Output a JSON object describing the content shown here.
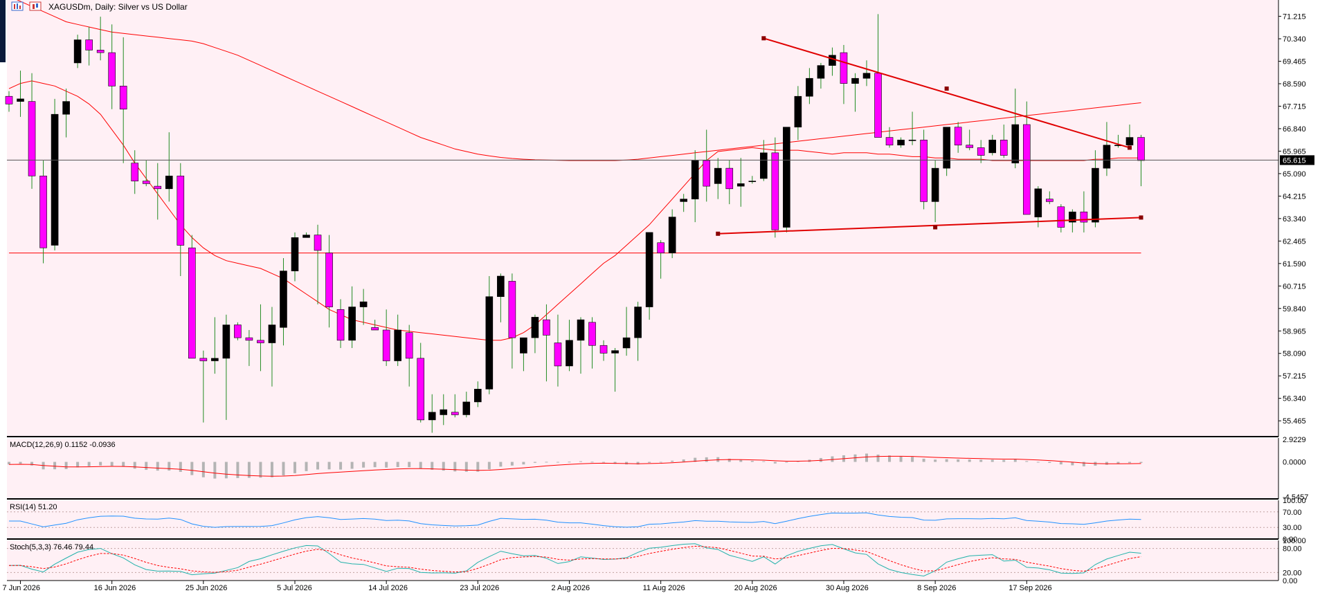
{
  "colors": {
    "background": "#FFF0F5",
    "bull_candle": "#000000",
    "bear_candle": "#FF00FF",
    "wick": "#228B22",
    "ma": "#FF0000",
    "trendline": "#E00000",
    "price_line": "#555555",
    "macd_hist": "#B4B4B4",
    "rsi": "#1E90FF",
    "stoch_main": "#20B2AA",
    "stoch_signal": "#FF0000",
    "level_line": "#C0A0A0"
  },
  "header": {
    "icon": "bar-chart-icon",
    "symbol": "XAGUSDm",
    "title": "XAGUSDm, Daily:  Silver vs US Dollar"
  },
  "price_readout": "65.615",
  "chart_data": {
    "type": "candlestick",
    "symbol": "XAGUSDm",
    "timeframe": "Daily",
    "description": "Silver vs US Dollar",
    "ylim": [
      54.85,
      71.85
    ],
    "y_ticks": [
      "71.215",
      "70.340",
      "69.465",
      "68.590",
      "67.715",
      "66.840",
      "65.965",
      "65.090",
      "64.215",
      "63.340",
      "62.465",
      "61.590",
      "60.715",
      "59.840",
      "58.965",
      "58.090",
      "57.215",
      "56.340",
      "55.465"
    ],
    "x_ticks": [
      {
        "label": "7 Jun 2026",
        "bar": 1
      },
      {
        "label": "16 Jun 2026",
        "bar": 9
      },
      {
        "label": "25 Jun 2026",
        "bar": 17
      },
      {
        "label": "5 Jul 2026",
        "bar": 25
      },
      {
        "label": "14 Jul 2026",
        "bar": 33
      },
      {
        "label": "23 Jul 2026",
        "bar": 41
      },
      {
        "label": "2 Aug 2026",
        "bar": 49
      },
      {
        "label": "11 Aug 2026",
        "bar": 57
      },
      {
        "label": "20 Aug 2026",
        "bar": 65
      },
      {
        "label": "30 Aug 2026",
        "bar": 73
      },
      {
        "label": "8 Sep 2026",
        "bar": 81
      },
      {
        "label": "17 Sep 2026",
        "bar": 89
      }
    ],
    "last_price": 65.615,
    "ohlc": [
      [
        68.1,
        68.3,
        67.5,
        67.8
      ],
      [
        67.9,
        69.1,
        67.3,
        68.0
      ],
      [
        67.9,
        69.0,
        64.5,
        65.0
      ],
      [
        65.0,
        65.6,
        61.6,
        62.2
      ],
      [
        62.3,
        68.0,
        62.1,
        67.4
      ],
      [
        67.4,
        68.4,
        66.5,
        67.9
      ],
      [
        69.4,
        70.5,
        69.2,
        70.3
      ],
      [
        70.3,
        70.8,
        69.3,
        69.9
      ],
      [
        69.9,
        71.2,
        69.5,
        69.8
      ],
      [
        69.8,
        70.9,
        67.6,
        68.5
      ],
      [
        68.5,
        70.4,
        65.5,
        67.6
      ],
      [
        65.5,
        66.0,
        64.3,
        64.8
      ],
      [
        64.8,
        65.6,
        64.6,
        64.7
      ],
      [
        64.6,
        65.5,
        63.3,
        64.5
      ],
      [
        64.5,
        66.7,
        64.0,
        65.0
      ],
      [
        65.0,
        65.5,
        61.1,
        62.3
      ],
      [
        62.2,
        62.7,
        58.0,
        57.9
      ],
      [
        57.9,
        58.2,
        55.4,
        57.8
      ],
      [
        57.8,
        59.5,
        57.3,
        57.9
      ],
      [
        57.9,
        59.6,
        55.5,
        59.2
      ],
      [
        59.2,
        59.3,
        58.6,
        58.7
      ],
      [
        58.7,
        59.0,
        57.6,
        58.6
      ],
      [
        58.6,
        60.0,
        57.4,
        58.5
      ],
      [
        58.5,
        59.9,
        56.8,
        59.2
      ],
      [
        59.1,
        61.8,
        58.4,
        61.3
      ],
      [
        61.3,
        62.8,
        60.9,
        62.6
      ],
      [
        62.6,
        62.8,
        62.6,
        62.7
      ],
      [
        62.7,
        63.1,
        60.0,
        62.1
      ],
      [
        62.0,
        62.7,
        59.1,
        59.9
      ],
      [
        59.8,
        60.2,
        58.3,
        58.6
      ],
      [
        58.6,
        60.7,
        58.3,
        59.9
      ],
      [
        59.9,
        60.6,
        59.2,
        60.1
      ],
      [
        59.1,
        59.4,
        59.0,
        59.0
      ],
      [
        59.0,
        59.8,
        57.6,
        57.8
      ],
      [
        57.8,
        59.6,
        57.6,
        59.0
      ],
      [
        58.9,
        59.2,
        56.8,
        57.9
      ],
      [
        57.9,
        58.5,
        55.4,
        55.5
      ],
      [
        55.5,
        56.5,
        55.0,
        55.8
      ],
      [
        55.7,
        56.5,
        55.3,
        55.9
      ],
      [
        55.8,
        56.5,
        55.6,
        55.7
      ],
      [
        55.7,
        56.6,
        55.6,
        56.2
      ],
      [
        56.2,
        57.0,
        56.0,
        56.7
      ],
      [
        56.7,
        61.1,
        56.5,
        60.3
      ],
      [
        60.3,
        61.2,
        59.3,
        61.1
      ],
      [
        60.9,
        61.2,
        57.5,
        58.7
      ],
      [
        58.1,
        58.7,
        57.4,
        58.7
      ],
      [
        58.7,
        59.6,
        58.1,
        59.5
      ],
      [
        59.4,
        60.0,
        57.0,
        58.8
      ],
      [
        58.5,
        59.6,
        56.8,
        57.6
      ],
      [
        57.6,
        59.4,
        57.4,
        58.6
      ],
      [
        58.6,
        59.5,
        57.3,
        59.4
      ],
      [
        59.3,
        59.5,
        57.5,
        58.4
      ],
      [
        58.4,
        58.6,
        57.8,
        58.1
      ],
      [
        58.1,
        58.3,
        56.6,
        58.2
      ],
      [
        58.3,
        59.9,
        58.0,
        58.7
      ],
      [
        58.7,
        60.1,
        57.8,
        59.9
      ],
      [
        59.9,
        62.8,
        59.4,
        62.8
      ],
      [
        62.4,
        62.5,
        61.0,
        62.0
      ],
      [
        62.0,
        63.7,
        61.8,
        63.4
      ],
      [
        64.0,
        64.3,
        63.6,
        64.1
      ],
      [
        64.1,
        66.0,
        63.2,
        65.6
      ],
      [
        65.6,
        66.8,
        64.0,
        64.6
      ],
      [
        64.7,
        65.7,
        64.1,
        65.3
      ],
      [
        65.3,
        65.6,
        63.9,
        64.5
      ],
      [
        64.6,
        65.7,
        63.8,
        64.7
      ],
      [
        64.8,
        65.0,
        64.7,
        64.8
      ],
      [
        64.9,
        66.4,
        64.8,
        65.9
      ],
      [
        65.9,
        66.5,
        62.6,
        62.9
      ],
      [
        63.0,
        66.9,
        62.8,
        66.9
      ],
      [
        66.9,
        68.5,
        66.4,
        68.1
      ],
      [
        68.1,
        69.2,
        67.8,
        68.8
      ],
      [
        68.8,
        69.4,
        68.4,
        69.3
      ],
      [
        69.3,
        70.0,
        68.9,
        69.7
      ],
      [
        69.8,
        70.1,
        67.8,
        68.6
      ],
      [
        68.6,
        69.0,
        67.5,
        68.8
      ],
      [
        68.8,
        69.5,
        68.5,
        69.0
      ],
      [
        69.0,
        71.3,
        66.6,
        66.5
      ],
      [
        66.5,
        66.9,
        66.1,
        66.2
      ],
      [
        66.2,
        66.5,
        66.1,
        66.4
      ],
      [
        66.4,
        67.5,
        66.2,
        66.4
      ],
      [
        66.4,
        66.8,
        63.7,
        64.0
      ],
      [
        64.0,
        65.6,
        63.2,
        65.3
      ],
      [
        65.3,
        66.9,
        65.0,
        66.9
      ],
      [
        66.9,
        67.1,
        65.9,
        66.2
      ],
      [
        66.2,
        66.8,
        66.0,
        66.1
      ],
      [
        66.1,
        66.4,
        65.5,
        65.8
      ],
      [
        65.9,
        66.6,
        65.8,
        66.4
      ],
      [
        66.4,
        67.0,
        65.7,
        65.8
      ],
      [
        65.5,
        68.4,
        65.3,
        67.0
      ],
      [
        67.0,
        67.9,
        63.5,
        63.5
      ],
      [
        63.4,
        64.6,
        63.0,
        64.5
      ],
      [
        64.1,
        64.4,
        63.9,
        64.0
      ],
      [
        63.8,
        63.9,
        62.8,
        63.0
      ],
      [
        63.2,
        63.7,
        62.8,
        63.6
      ],
      [
        63.6,
        64.4,
        62.8,
        63.2
      ],
      [
        63.2,
        66.0,
        63.0,
        65.3
      ],
      [
        65.3,
        67.1,
        65.0,
        66.2
      ],
      [
        66.2,
        66.6,
        66.1,
        66.2
      ],
      [
        66.2,
        67.0,
        66.2,
        66.5
      ],
      [
        66.5,
        66.6,
        64.6,
        65.6
      ]
    ],
    "ma_fast": [
      68.4,
      68.6,
      68.7,
      68.6,
      68.5,
      68.3,
      68.1,
      67.8,
      67.4,
      66.8,
      66.2,
      65.5,
      64.9,
      64.3,
      63.7,
      63.1,
      62.6,
      62.2,
      61.9,
      61.7,
      61.6,
      61.5,
      61.4,
      61.2,
      61.0,
      60.7,
      60.4,
      60.1,
      59.8,
      59.6,
      59.4,
      59.3,
      59.2,
      59.1,
      59.0,
      58.95,
      58.9,
      58.85,
      58.8,
      58.75,
      58.7,
      58.65,
      58.6,
      58.6,
      58.7,
      58.9,
      59.2,
      59.6,
      60.0,
      60.4,
      60.8,
      61.2,
      61.6,
      61.9,
      62.3,
      62.7,
      63.1,
      63.6,
      64.1,
      64.6,
      65.1,
      65.6,
      65.95,
      66.0,
      66.05,
      66.1,
      66.05,
      66.0,
      66.0,
      66.0,
      65.95,
      65.9,
      65.85,
      65.9,
      65.9,
      65.9,
      65.85,
      65.85,
      65.8,
      65.75,
      65.75,
      65.7,
      65.7,
      65.65,
      65.65,
      65.65,
      65.6,
      65.6,
      65.6,
      65.6,
      65.6,
      65.6,
      65.6,
      65.6,
      65.6,
      65.65,
      65.65,
      65.7,
      65.7,
      65.7
    ],
    "ma_mid": [
      72.0,
      71.8,
      71.6,
      71.4,
      71.2,
      71.0,
      70.9,
      70.8,
      70.7,
      70.6,
      70.55,
      70.5,
      70.45,
      70.4,
      70.35,
      70.3,
      70.25,
      70.15,
      70.0,
      69.85,
      69.7,
      69.5,
      69.3,
      69.1,
      68.9,
      68.7,
      68.5,
      68.3,
      68.1,
      67.9,
      67.7,
      67.5,
      67.3,
      67.1,
      66.9,
      66.7,
      66.5,
      66.35,
      66.2,
      66.05,
      65.95,
      65.85,
      65.78,
      65.72,
      65.68,
      65.65,
      65.63,
      65.62,
      65.61,
      65.6,
      65.6,
      65.6,
      65.6,
      65.6,
      65.62,
      65.65,
      65.7,
      65.75,
      65.8,
      65.85,
      65.9,
      65.95,
      66.0,
      66.05,
      66.1,
      66.15,
      66.2,
      66.25,
      66.3,
      66.35,
      66.4,
      66.45,
      66.5,
      66.55,
      66.6,
      66.65,
      66.7,
      66.75,
      66.8,
      66.85,
      66.9,
      66.95,
      67.0,
      67.05,
      67.1,
      67.15,
      67.2,
      67.25,
      67.3,
      67.35,
      67.4,
      67.45,
      67.5,
      67.55,
      67.6,
      67.65,
      67.7,
      67.75,
      67.8,
      67.85
    ],
    "ma_slow": [
      62.0,
      62.0,
      62.0,
      62.0,
      62.0,
      62.0,
      62.0,
      62.0,
      62.0,
      62.0,
      62.0,
      62.0,
      62.0,
      62.0,
      62.0,
      62.0,
      62.0,
      62.0,
      62.0,
      62.0,
      62.0,
      62.0,
      62.0,
      62.0,
      62.0,
      62.0,
      62.0,
      62.0,
      62.0,
      62.0,
      62.0,
      62.0,
      62.0,
      62.0,
      62.0,
      62.0,
      62.0,
      62.0,
      62.0,
      62.0,
      62.0,
      62.0,
      62.0,
      62.0,
      62.0,
      62.0,
      62.0,
      62.0,
      62.0,
      62.0,
      62.0,
      62.0,
      62.0,
      62.0,
      62.0,
      62.0,
      62.0,
      62.0,
      62.0,
      62.0,
      62.0,
      62.0,
      62.0,
      62.0,
      62.0,
      62.0,
      62.0,
      62.0,
      62.0,
      62.0,
      62.0,
      62.0,
      62.0,
      62.0,
      62.0,
      62.0,
      62.0,
      62.0,
      62.0,
      62.0,
      62.0,
      62.0,
      62.0,
      62.0,
      62.0,
      62.0,
      62.0,
      62.0,
      62.0,
      62.0,
      62.0,
      62.0,
      62.0,
      62.0,
      62.0,
      62.0,
      62.0,
      62.0,
      62.0,
      62.0
    ],
    "trendlines": [
      {
        "from": [
          66,
          70.36
        ],
        "to": [
          98,
          66.1
        ]
      },
      {
        "from": [
          62,
          62.75
        ],
        "to": [
          99,
          63.38
        ]
      }
    ],
    "trend_points": [
      [
        66,
        70.36
      ],
      [
        82,
        68.4
      ],
      [
        98,
        66.1
      ],
      [
        62,
        62.75
      ],
      [
        81,
        63.0
      ],
      [
        99,
        63.38
      ]
    ],
    "macd": {
      "label": "MACD(12,26,9) 0.1152 -0.0936",
      "ylim": [
        -4.8,
        3.1
      ],
      "y_ticks": [
        "2.9229",
        "0.0000",
        "-4.5457"
      ]
    },
    "rsi": {
      "label": "RSI(14) 51.20",
      "ylim": [
        0,
        100
      ],
      "y_ticks": [
        "100.00",
        "70.00",
        "30.00",
        "0.00"
      ],
      "levels": [
        70,
        30
      ]
    },
    "stoch": {
      "label": "Stoch(5,3,3) 76.46 79.44",
      "ylim": [
        0,
        100
      ],
      "y_ticks": [
        "100.00",
        "80.00",
        "20.00",
        "0.00"
      ],
      "levels": [
        80,
        20
      ]
    }
  }
}
